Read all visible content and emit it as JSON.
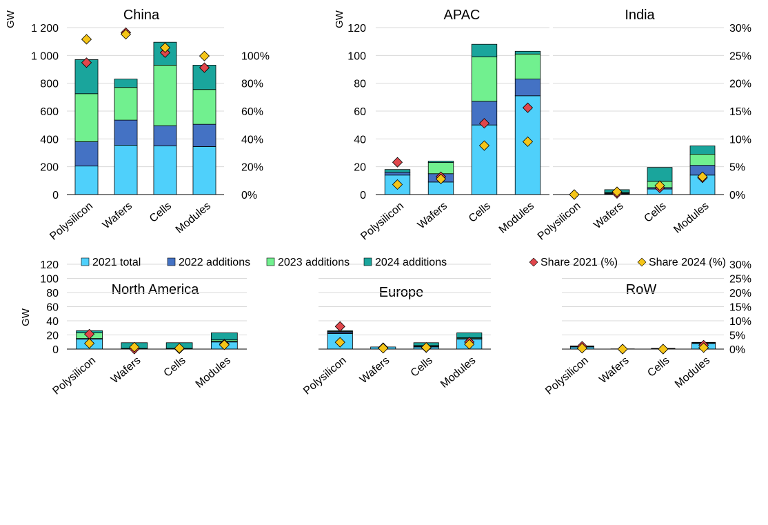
{
  "legend": {
    "items": [
      {
        "label": "2021 total",
        "color": "#4fd0fb",
        "marker": "square"
      },
      {
        "label": "2022 additions",
        "color": "#4472c4",
        "marker": "square"
      },
      {
        "label": "2023 additions",
        "color": "#71f08f",
        "marker": "square"
      },
      {
        "label": "2024 additions",
        "color": "#1aa59c",
        "marker": "square"
      },
      {
        "label": "Share 2021 (%)",
        "color": "#e0474c",
        "marker": "diamond"
      },
      {
        "label": "Share 2024 (%)",
        "color": "#f5c518",
        "marker": "diamond"
      }
    ]
  },
  "chart_data": [
    {
      "type": "bar",
      "title": "China",
      "ylabel": "GW",
      "categories": [
        "Polysilicon",
        "Wafers",
        "Cells",
        "Modules"
      ],
      "ylim": [
        0,
        1200
      ],
      "yticks": [
        "0",
        "200",
        "400",
        "600",
        "800",
        "1 000",
        "1 200"
      ],
      "y2lim": [
        0,
        1
      ],
      "y2ticks": [
        "0%",
        "20%",
        "40%",
        "60%",
        "80%",
        "100%"
      ],
      "series": [
        {
          "name": "2021 total",
          "values": [
            205,
            355,
            350,
            345
          ]
        },
        {
          "name": "2022 additions",
          "values": [
            175,
            180,
            145,
            160
          ]
        },
        {
          "name": "2023 additions",
          "values": [
            345,
            235,
            435,
            250
          ]
        },
        {
          "name": "2024 additions",
          "values": [
            245,
            60,
            165,
            175
          ]
        },
        {
          "name": "Share 2021 (%)",
          "values": [
            0.79,
            0.97,
            0.85,
            0.76
          ]
        },
        {
          "name": "Share 2024 (%)",
          "values": [
            0.93,
            0.96,
            0.88,
            0.83
          ]
        }
      ]
    },
    {
      "type": "bar",
      "title": "APAC",
      "ylabel": "GW",
      "categories": [
        "Polysilicon",
        "Wafers",
        "Cells",
        "Modules"
      ],
      "ylim": [
        0,
        120
      ],
      "yticks": [
        "0",
        "20",
        "40",
        "60",
        "80",
        "100",
        "120"
      ],
      "series": [
        {
          "name": "2021 total",
          "values": [
            14,
            9,
            50,
            71
          ]
        },
        {
          "name": "2022 additions",
          "values": [
            2,
            6,
            17,
            12
          ]
        },
        {
          "name": "2023 additions",
          "values": [
            0,
            8,
            32,
            18
          ]
        },
        {
          "name": "2024 additions",
          "values": [
            2,
            1,
            9,
            2
          ]
        },
        {
          "name": "Share 2021 (%)",
          "values": [
            0.058,
            0.032,
            0.128,
            0.156
          ]
        },
        {
          "name": "Share 2024 (%)",
          "values": [
            0.018,
            0.028,
            0.088,
            0.095
          ]
        }
      ]
    },
    {
      "type": "bar",
      "title": "India",
      "categories": [
        "Polysilicon",
        "Wafers",
        "Cells",
        "Modules"
      ],
      "ylim": [
        0,
        120
      ],
      "y2lim": [
        0,
        0.3
      ],
      "y2ticks": [
        "0%",
        "5%",
        "10%",
        "15%",
        "20%",
        "25%",
        "30%"
      ],
      "series": [
        {
          "name": "2021 total",
          "values": [
            0,
            0.5,
            4,
            14
          ]
        },
        {
          "name": "2022 additions",
          "values": [
            0,
            0.5,
            1,
            7
          ]
        },
        {
          "name": "2023 additions",
          "values": [
            0,
            0.5,
            4.5,
            8
          ]
        },
        {
          "name": "2024 additions",
          "values": [
            0,
            2,
            10,
            6
          ]
        },
        {
          "name": "Share 2021 (%)",
          "values": [
            0,
            0.002,
            0.012,
            0.03
          ]
        },
        {
          "name": "Share 2024 (%)",
          "values": [
            0,
            0.005,
            0.016,
            0.032
          ]
        }
      ]
    },
    {
      "type": "bar",
      "title": "North America",
      "ylabel": "GW",
      "categories": [
        "Polysilicon",
        "Wafers",
        "Cells",
        "Modules"
      ],
      "ylim": [
        0,
        120
      ],
      "yticks": [
        "0",
        "20",
        "40",
        "60",
        "80",
        "100",
        "120"
      ],
      "series": [
        {
          "name": "2021 total",
          "values": [
            14,
            0,
            1,
            10
          ]
        },
        {
          "name": "2022 additions",
          "values": [
            1,
            0,
            0,
            1
          ]
        },
        {
          "name": "2023 additions",
          "values": [
            8,
            1,
            0,
            2
          ]
        },
        {
          "name": "2024 additions",
          "values": [
            3,
            8,
            8,
            10
          ]
        },
        {
          "name": "Share 2021 (%)",
          "values": [
            0.053,
            0.0,
            0.001,
            0.018
          ]
        },
        {
          "name": "Share 2024 (%)",
          "values": [
            0.02,
            0.007,
            0.003,
            0.015
          ]
        }
      ]
    },
    {
      "type": "bar",
      "title": "Europe",
      "categories": [
        "Polysilicon",
        "Wafers",
        "Cells",
        "Modules"
      ],
      "ylim": [
        0,
        120
      ],
      "series": [
        {
          "name": "2021 total",
          "values": [
            22,
            3,
            3,
            14
          ]
        },
        {
          "name": "2022 additions",
          "values": [
            2,
            0,
            1,
            1
          ]
        },
        {
          "name": "2023 additions",
          "values": [
            1,
            0,
            1,
            1
          ]
        },
        {
          "name": "2024 additions",
          "values": [
            1,
            0,
            4,
            7
          ]
        },
        {
          "name": "Share 2021 (%)",
          "values": [
            0.08,
            0.005,
            0.005,
            0.025
          ]
        },
        {
          "name": "Share 2024 (%)",
          "values": [
            0.024,
            0.003,
            0.006,
            0.017
          ]
        }
      ]
    },
    {
      "type": "bar",
      "title": "RoW",
      "categories": [
        "Polysilicon",
        "Wafers",
        "Cells",
        "Modules"
      ],
      "ylim": [
        0,
        120
      ],
      "y2lim": [
        0,
        0.3
      ],
      "y2ticks": [
        "0%",
        "5%",
        "10%",
        "15%",
        "20%",
        "25%",
        "30%"
      ],
      "series": [
        {
          "name": "2021 total",
          "values": [
            3,
            0.3,
            0.5,
            8
          ]
        },
        {
          "name": "2022 additions",
          "values": [
            0.5,
            0,
            0.3,
            0.5
          ]
        },
        {
          "name": "2023 additions",
          "values": [
            0.5,
            0,
            0,
            0.5
          ]
        },
        {
          "name": "2024 additions",
          "values": [
            0.5,
            0,
            0.2,
            0.5
          ]
        },
        {
          "name": "Share 2021 (%)",
          "values": [
            0.01,
            0.0,
            0.0,
            0.014
          ]
        },
        {
          "name": "Share 2024 (%)",
          "values": [
            0.003,
            0.0,
            0.0,
            0.005
          ]
        }
      ]
    }
  ]
}
